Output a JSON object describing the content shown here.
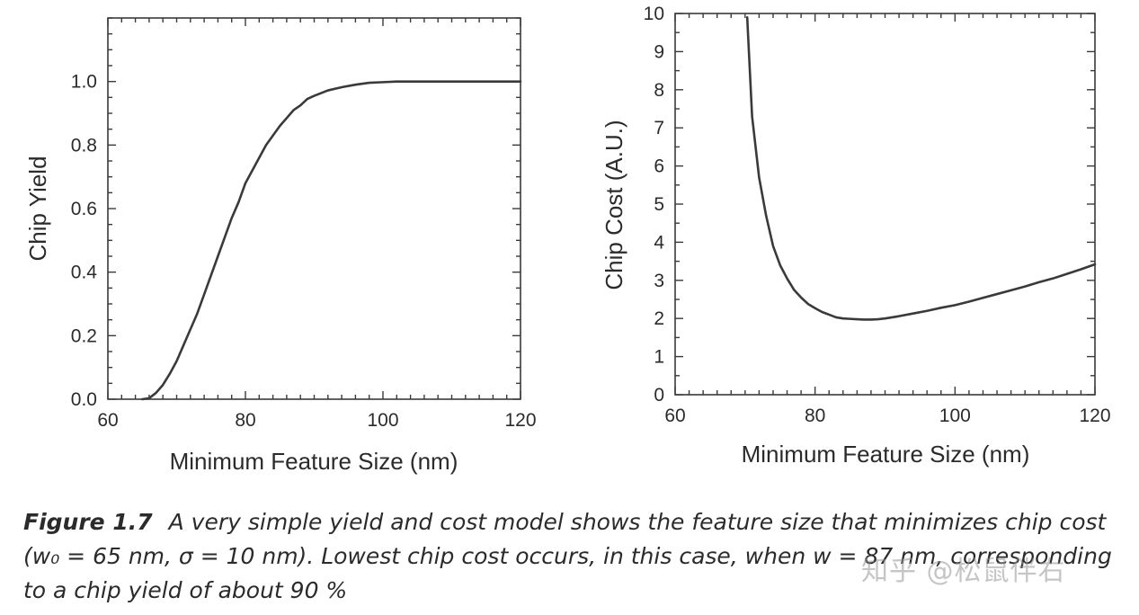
{
  "chart_data": [
    {
      "type": "line",
      "id": "yield",
      "xlabel": "Minimum Feature Size (nm)",
      "ylabel": "Chip Yield",
      "xlim": [
        60,
        120
      ],
      "ylim": [
        0.0,
        1.2
      ],
      "xticks": [
        60,
        80,
        100,
        120
      ],
      "xtick_labels": [
        "60",
        "80",
        "100",
        "120"
      ],
      "yticks": [
        0.0,
        0.2,
        0.4,
        0.6,
        0.8,
        1.0
      ],
      "ytick_labels": [
        "0.0",
        "0.2",
        "0.4",
        "0.6",
        "0.8",
        "1.0"
      ],
      "minor_x_step": 2,
      "minor_y_step": 0.05,
      "grid": false,
      "series": [
        {
          "name": "Chip Yield",
          "x": [
            65,
            66,
            67,
            68,
            69,
            70,
            71,
            72,
            73,
            74,
            75,
            76,
            77,
            78,
            79,
            80,
            81,
            82,
            83,
            84,
            85,
            86,
            87,
            88,
            89,
            90,
            92,
            94,
            96,
            98,
            100,
            102,
            106,
            110,
            120
          ],
          "y": [
            0.0,
            0.003,
            0.02,
            0.045,
            0.08,
            0.12,
            0.17,
            0.22,
            0.27,
            0.33,
            0.39,
            0.45,
            0.51,
            0.57,
            0.62,
            0.68,
            0.72,
            0.76,
            0.8,
            0.83,
            0.86,
            0.885,
            0.91,
            0.925,
            0.945,
            0.955,
            0.972,
            0.982,
            0.99,
            0.996,
            0.998,
            1.0,
            1.0,
            1.0,
            1.0
          ]
        }
      ]
    },
    {
      "type": "line",
      "id": "cost",
      "xlabel": "Minimum Feature Size (nm)",
      "ylabel": "Chip Cost (A.U.)",
      "xlim": [
        60,
        120
      ],
      "ylim": [
        0,
        10
      ],
      "xticks": [
        60,
        80,
        100,
        120
      ],
      "xtick_labels": [
        "60",
        "80",
        "100",
        "120"
      ],
      "yticks": [
        0,
        1,
        2,
        3,
        4,
        5,
        6,
        7,
        8,
        9,
        10
      ],
      "ytick_labels": [
        "0",
        "1",
        "2",
        "3",
        "4",
        "5",
        "6",
        "7",
        "8",
        "9",
        "10"
      ],
      "minor_x_step": 2,
      "minor_y_step": 0.5,
      "grid": false,
      "series": [
        {
          "name": "Chip Cost",
          "x": [
            70.3,
            71,
            72,
            73,
            74,
            75,
            76,
            77,
            78,
            79,
            80,
            81,
            82,
            83,
            84,
            85,
            86,
            87,
            88,
            89,
            90,
            92,
            94,
            96,
            98,
            100,
            102,
            104,
            106,
            108,
            110,
            112,
            114,
            116,
            118,
            120
          ],
          "y": [
            9.9,
            7.3,
            5.7,
            4.7,
            3.9,
            3.4,
            3.05,
            2.75,
            2.55,
            2.38,
            2.27,
            2.17,
            2.1,
            2.03,
            2.0,
            1.99,
            1.98,
            1.97,
            1.97,
            1.98,
            2.0,
            2.06,
            2.13,
            2.2,
            2.28,
            2.35,
            2.44,
            2.54,
            2.64,
            2.74,
            2.84,
            2.95,
            3.05,
            3.17,
            3.29,
            3.42
          ]
        }
      ]
    }
  ],
  "caption": {
    "label": "Figure 1.7",
    "text": "A very simple yield and cost model shows the feature size that minimizes chip cost (w₀ = 65 nm, σ = 10 nm). Lowest chip cost occurs, in this case, when w = 87 nm, corresponding to a chip yield of about 90 %"
  },
  "watermark": "知乎 @松鼠伴右"
}
